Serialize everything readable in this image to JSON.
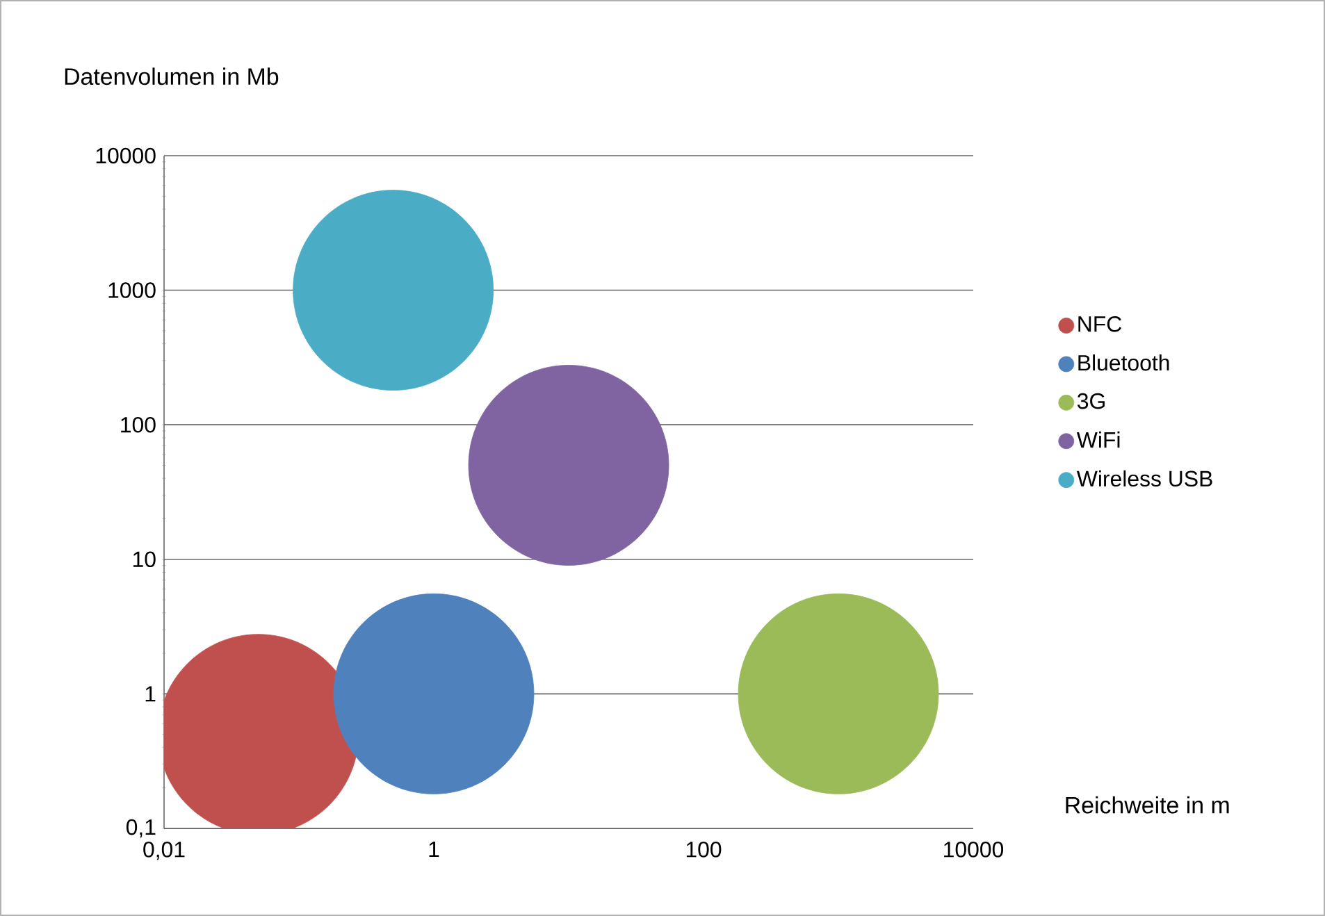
{
  "chart_data": {
    "type": "bubble",
    "xlabel": "Reichweite in  m",
    "ylabel": "Datenvolumen in Mb",
    "log": "xy",
    "grid": "y",
    "legend": "right",
    "xlim": [
      0.01,
      10000
    ],
    "ylim": [
      0.1,
      10000
    ],
    "xticks": [
      {
        "value": 0.01,
        "label": "0,01"
      },
      1,
      100,
      10000
    ],
    "yticks": [
      {
        "value": 0.1,
        "label": "0,1"
      },
      1,
      10,
      100,
      1000,
      10000
    ],
    "series": [
      {
        "name": "NFC",
        "color": "#c0504d",
        "x": [
          0.05
        ],
        "values": [
          0.5
        ],
        "sizes": [
          1
        ]
      },
      {
        "name": "Bluetooth",
        "color": "#4f81bd",
        "x": [
          1
        ],
        "values": [
          1
        ],
        "sizes": [
          1
        ]
      },
      {
        "name": "3G",
        "color": "#9bbb59",
        "x": [
          1000
        ],
        "values": [
          1
        ],
        "sizes": [
          1
        ]
      },
      {
        "name": "WiFi",
        "color": "#8064a2",
        "x": [
          10
        ],
        "values": [
          50
        ],
        "sizes": [
          1
        ]
      },
      {
        "name": "Wireless USB",
        "color": "#4bacc6",
        "x": [
          0.5
        ],
        "values": [
          1000
        ],
        "sizes": [
          1
        ]
      }
    ]
  }
}
